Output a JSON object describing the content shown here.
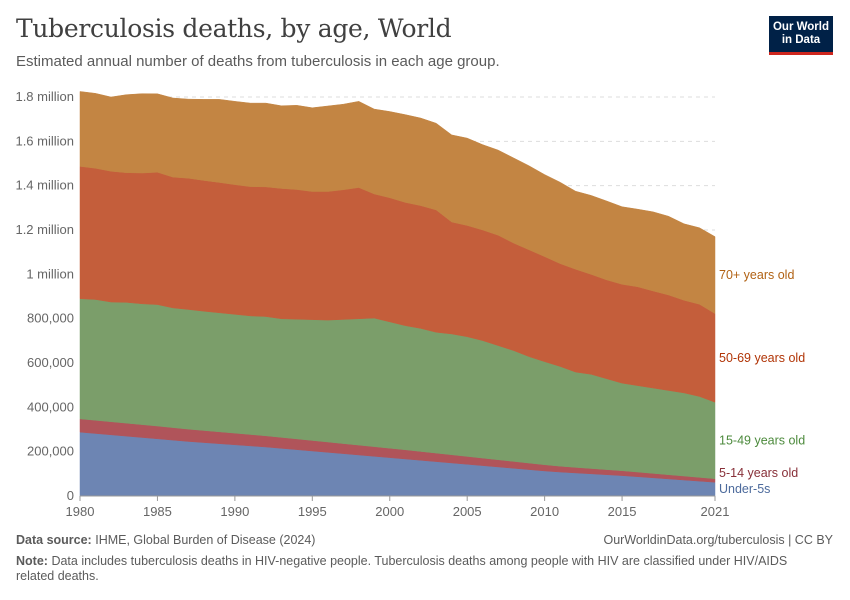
{
  "title": "Tuberculosis deaths, by age, World",
  "subtitle": "Estimated annual number of deaths from tuberculosis in each age group.",
  "logo": {
    "line1": "Our World",
    "line2": "in Data"
  },
  "footer": {
    "source_label": "Data source:",
    "source_text": "IHME, Global Burden of Disease (2024)",
    "url": "OurWorldinData.org/tuberculosis | CC BY",
    "note_label": "Note:",
    "note_text": "Data includes tuberculosis deaths in HIV-negative people. Tuberculosis deaths among people with HIV are classified under HIV/AIDS related deaths."
  },
  "chart_data": {
    "type": "area",
    "stacked": true,
    "x": [
      1980,
      1981,
      1982,
      1983,
      1984,
      1985,
      1986,
      1987,
      1988,
      1989,
      1990,
      1991,
      1992,
      1993,
      1994,
      1995,
      1996,
      1997,
      1998,
      1999,
      2000,
      2001,
      2002,
      2003,
      2004,
      2005,
      2006,
      2007,
      2008,
      2009,
      2010,
      2011,
      2012,
      2013,
      2014,
      2015,
      2016,
      2017,
      2018,
      2019,
      2020,
      2021
    ],
    "xticks": [
      1980,
      1985,
      1990,
      1995,
      2000,
      2005,
      2010,
      2015,
      2021
    ],
    "ylim": [
      0,
      1800000
    ],
    "yticks": [
      {
        "value": 0,
        "label": "0"
      },
      {
        "value": 200000,
        "label": "200,000"
      },
      {
        "value": 400000,
        "label": "400,000"
      },
      {
        "value": 600000,
        "label": "600,000"
      },
      {
        "value": 800000,
        "label": "800,000"
      },
      {
        "value": 1000000,
        "label": "1 million"
      },
      {
        "value": 1200000,
        "label": "1.2 million"
      },
      {
        "value": 1400000,
        "label": "1.4 million"
      },
      {
        "value": 1600000,
        "label": "1.6 million"
      },
      {
        "value": 1800000,
        "label": "1.8 million"
      }
    ],
    "grid": "horizontal-dashed",
    "legend": "right-inline",
    "series": [
      {
        "name": "Under-5s",
        "color": "#6d85b3",
        "values": [
          288000,
          282000,
          276000,
          270000,
          264000,
          258000,
          252000,
          246000,
          241000,
          236000,
          231000,
          226000,
          221000,
          215000,
          209000,
          203000,
          197000,
          191000,
          185000,
          179000,
          173000,
          167000,
          161000,
          155000,
          149000,
          143000,
          137000,
          131000,
          125000,
          119000,
          113000,
          108000,
          104000,
          100000,
          96000,
          92000,
          87000,
          82000,
          77000,
          72000,
          67000,
          62000
        ]
      },
      {
        "name": "5-14 years old",
        "color": "#b0545a",
        "values": [
          60000,
          59500,
          59000,
          58500,
          58000,
          57500,
          56500,
          55500,
          54500,
          53500,
          52500,
          51500,
          50500,
          49500,
          48500,
          47500,
          46500,
          45500,
          44500,
          43500,
          42500,
          41500,
          40000,
          38500,
          37000,
          35500,
          34000,
          32500,
          31000,
          29500,
          28000,
          26500,
          25000,
          24000,
          23000,
          22000,
          21000,
          20000,
          19000,
          18000,
          17000,
          16000
        ]
      },
      {
        "name": "15-49 years old",
        "color": "#7b9e6a",
        "values": [
          542000,
          545000,
          540000,
          545000,
          545000,
          548000,
          540000,
          540000,
          538000,
          537000,
          536000,
          535000,
          538000,
          535000,
          540000,
          545000,
          550000,
          560000,
          570000,
          580000,
          570000,
          560000,
          555000,
          545000,
          545000,
          540000,
          530000,
          515000,
          500000,
          480000,
          465000,
          450000,
          430000,
          425000,
          410000,
          395000,
          390000,
          385000,
          380000,
          375000,
          365000,
          345000
        ]
      },
      {
        "name": "50-69 years old",
        "color": "#c45e3b",
        "values": [
          597000,
          592000,
          590000,
          585000,
          590000,
          597000,
          590000,
          592000,
          590000,
          588000,
          585000,
          583000,
          585000,
          588000,
          585000,
          578000,
          580000,
          585000,
          592000,
          560000,
          560000,
          556000,
          554000,
          552000,
          505000,
          502000,
          499000,
          498000,
          485000,
          482000,
          474000,
          464000,
          464000,
          451000,
          446000,
          446000,
          446000,
          438000,
          431000,
          418000,
          416000,
          400000
        ]
      },
      {
        "name": "70+ years old",
        "color": "#c38543",
        "values": [
          338000,
          338000,
          335000,
          352000,
          358000,
          354000,
          357000,
          357000,
          366000,
          375000,
          376000,
          377000,
          378000,
          373000,
          380000,
          378000,
          386000,
          386000,
          389000,
          383000,
          389000,
          396000,
          395000,
          391000,
          393000,
          394000,
          385000,
          384000,
          384000,
          379000,
          370000,
          367000,
          352000,
          356000,
          356000,
          350000,
          350000,
          357000,
          355000,
          345000,
          345000,
          347000
        ]
      }
    ]
  }
}
